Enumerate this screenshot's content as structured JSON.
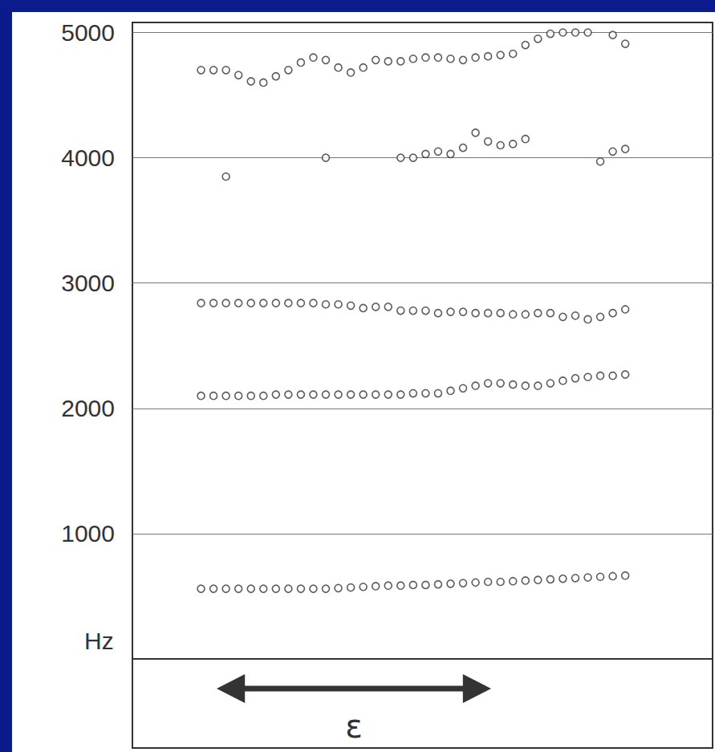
{
  "chart_data": {
    "type": "scatter",
    "y_label": "Hz",
    "annotation": "ɛ",
    "x": [
      0,
      1,
      2,
      3,
      4,
      5,
      6,
      7,
      8,
      9,
      10,
      11,
      12,
      13,
      14,
      15,
      16,
      17,
      18,
      19,
      20,
      21,
      22,
      23,
      24,
      25,
      26,
      27,
      28,
      29,
      30,
      31,
      32,
      33,
      34
    ],
    "xlim": [
      -5.5,
      41
    ],
    "ylim": [
      0,
      5080
    ],
    "yticks": [
      1000,
      2000,
      3000,
      4000,
      5000
    ],
    "grid": true,
    "tick_labels": "y",
    "series": [
      {
        "color": "#333333",
        "marker": "o",
        "values": [
          560,
          560,
          560,
          560,
          560,
          560,
          560,
          560,
          560,
          560,
          560,
          565,
          570,
          575,
          580,
          585,
          585,
          590,
          590,
          595,
          600,
          605,
          610,
          615,
          615,
          620,
          625,
          630,
          635,
          640,
          645,
          650,
          655,
          660,
          665
        ]
      },
      {
        "color": "#333333",
        "marker": "o",
        "values": [
          2100,
          2100,
          2100,
          2100,
          2100,
          2100,
          2110,
          2110,
          2110,
          2110,
          2110,
          2110,
          2110,
          2110,
          2110,
          2110,
          2110,
          2120,
          2120,
          2120,
          2140,
          2160,
          2180,
          2200,
          2200,
          2190,
          2180,
          2180,
          2200,
          2220,
          2240,
          2250,
          2260,
          2260,
          2270
        ]
      },
      {
        "color": "#333333",
        "marker": "o",
        "values": [
          2840,
          2840,
          2840,
          2840,
          2840,
          2840,
          2840,
          2840,
          2840,
          2840,
          2830,
          2830,
          2820,
          2800,
          2810,
          2810,
          2780,
          2780,
          2780,
          2760,
          2770,
          2770,
          2760,
          2760,
          2760,
          2750,
          2750,
          2760,
          2760,
          2730,
          2740,
          2710,
          2730,
          2760,
          2790
        ]
      },
      {
        "color": "#333333",
        "marker": "o",
        "values": [
          null,
          null,
          3850,
          null,
          null,
          null,
          null,
          null,
          null,
          null,
          4000,
          null,
          null,
          null,
          null,
          null,
          4000,
          4000,
          4030,
          4050,
          4030,
          4080,
          4200,
          4130,
          4100,
          4110,
          4150,
          null,
          null,
          null,
          null,
          null,
          3970,
          4050,
          4070
        ]
      },
      {
        "color": "#333333",
        "marker": "o",
        "values": [
          4700,
          4700,
          4700,
          4660,
          4610,
          4600,
          4650,
          4700,
          4760,
          4800,
          4780,
          4720,
          4680,
          4720,
          4780,
          4770,
          4770,
          4790,
          4800,
          4800,
          4790,
          4780,
          4800,
          4810,
          4820,
          4830,
          4900,
          4950,
          4990,
          5000,
          5000,
          5000,
          null,
          4980,
          4910
        ]
      }
    ]
  }
}
